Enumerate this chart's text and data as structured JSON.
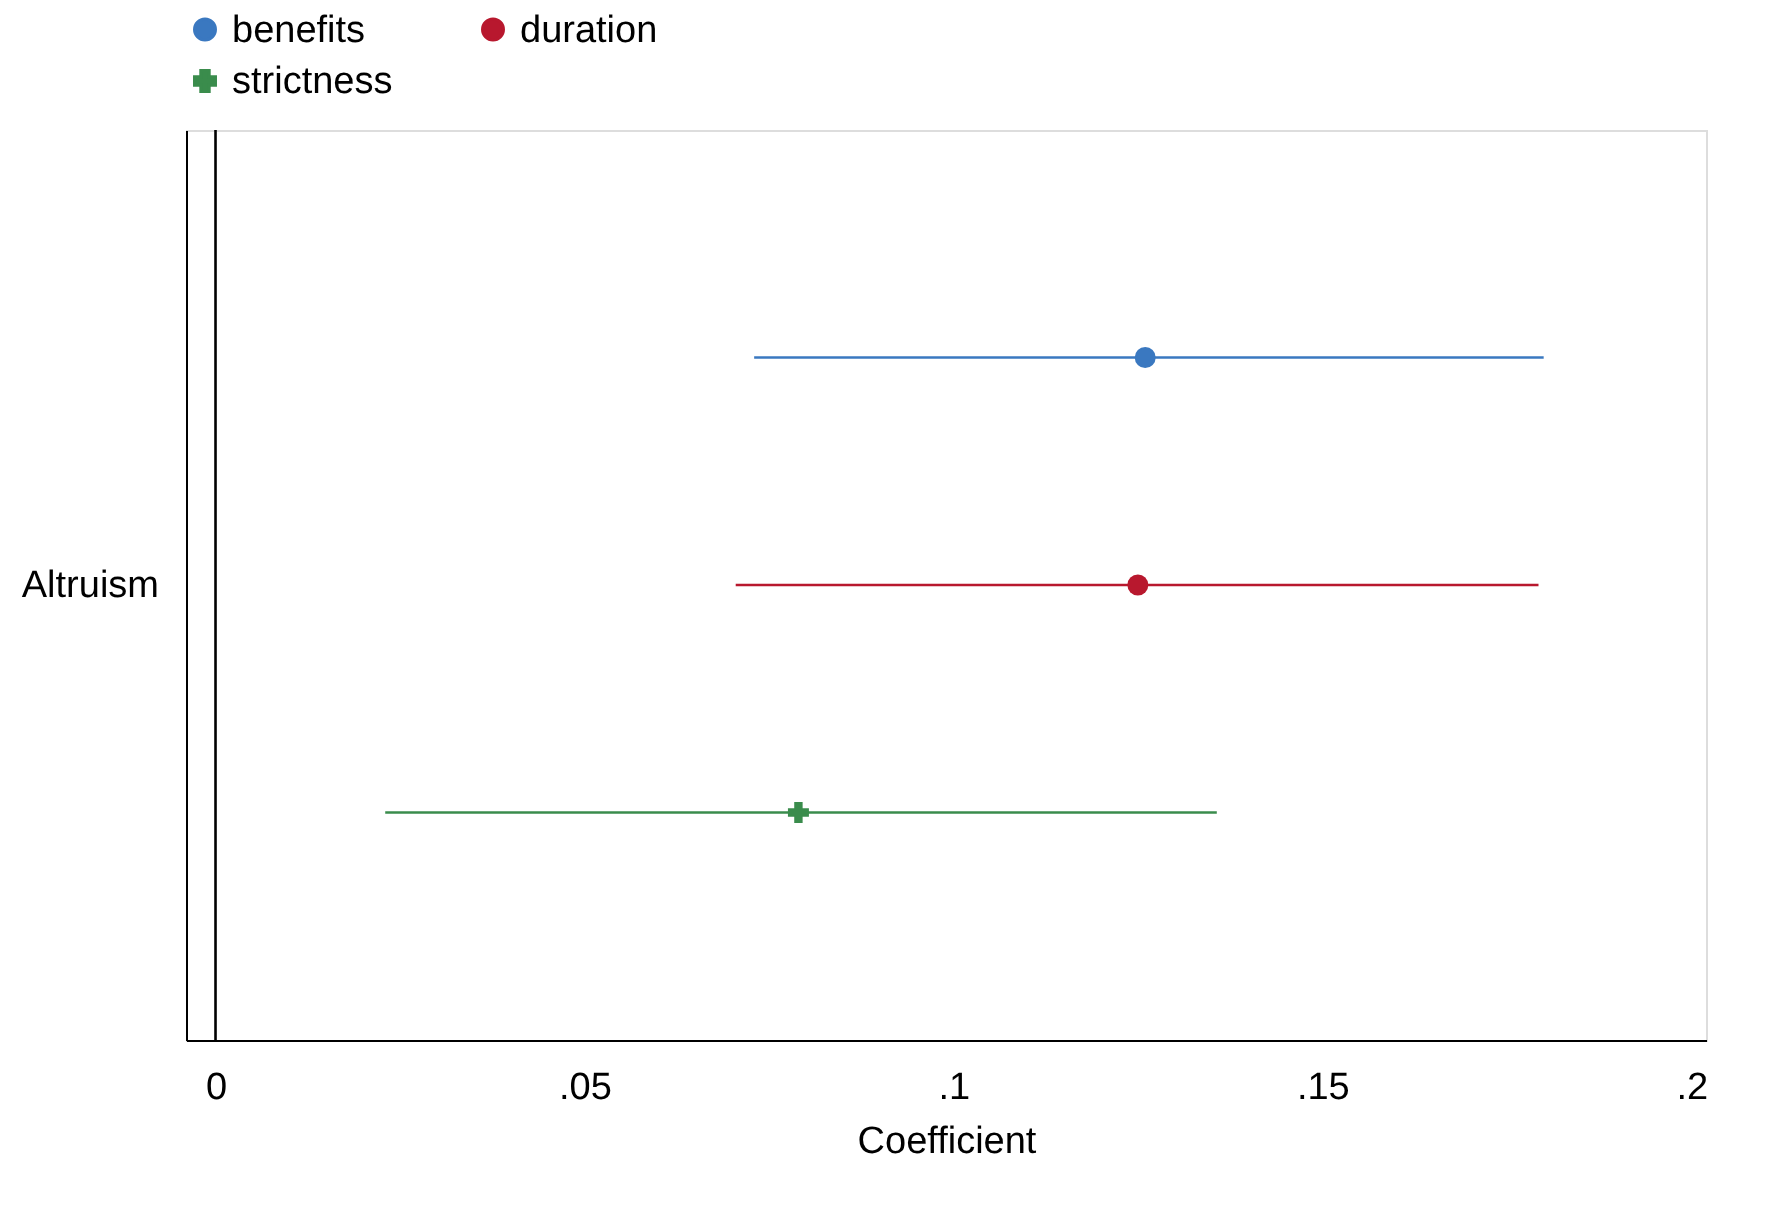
{
  "chart_data": {
    "type": "scatter",
    "orientation": "horizontal",
    "xlabel": "Coefficient",
    "categories": [
      null,
      "Altruism",
      null
    ],
    "series": [
      {
        "name": "benefits",
        "color": "#3a78c0",
        "marker": "circle",
        "values": [
          0.126,
          null,
          null
        ],
        "errors": [
          [
            0.073,
            0.18
          ],
          null,
          null
        ]
      },
      {
        "name": "duration",
        "color": "#b8182e",
        "marker": "circle",
        "values": [
          null,
          0.125,
          null
        ],
        "errors": [
          null,
          [
            0.0705,
            0.1793
          ],
          null
        ]
      },
      {
        "name": "strictness",
        "color": "#3a8c4c",
        "marker": "cross",
        "values": [
          null,
          null,
          0.079
        ],
        "errors": [
          null,
          null,
          [
            0.023,
            0.1357
          ]
        ]
      }
    ],
    "xlim": [
      -0.004,
      0.202
    ],
    "xticks": [
      {
        "value": 0,
        "label": "0"
      },
      {
        "value": 0.05,
        "label": ".05"
      },
      {
        "value": 0.1,
        "label": ".1"
      },
      {
        "value": 0.15,
        "label": ".15"
      },
      {
        "value": 0.2,
        "label": ".2"
      }
    ],
    "ref_lines": [
      {
        "axis": "x",
        "value": 0,
        "color": "#000000"
      }
    ],
    "grid": false,
    "legend": "top left"
  }
}
